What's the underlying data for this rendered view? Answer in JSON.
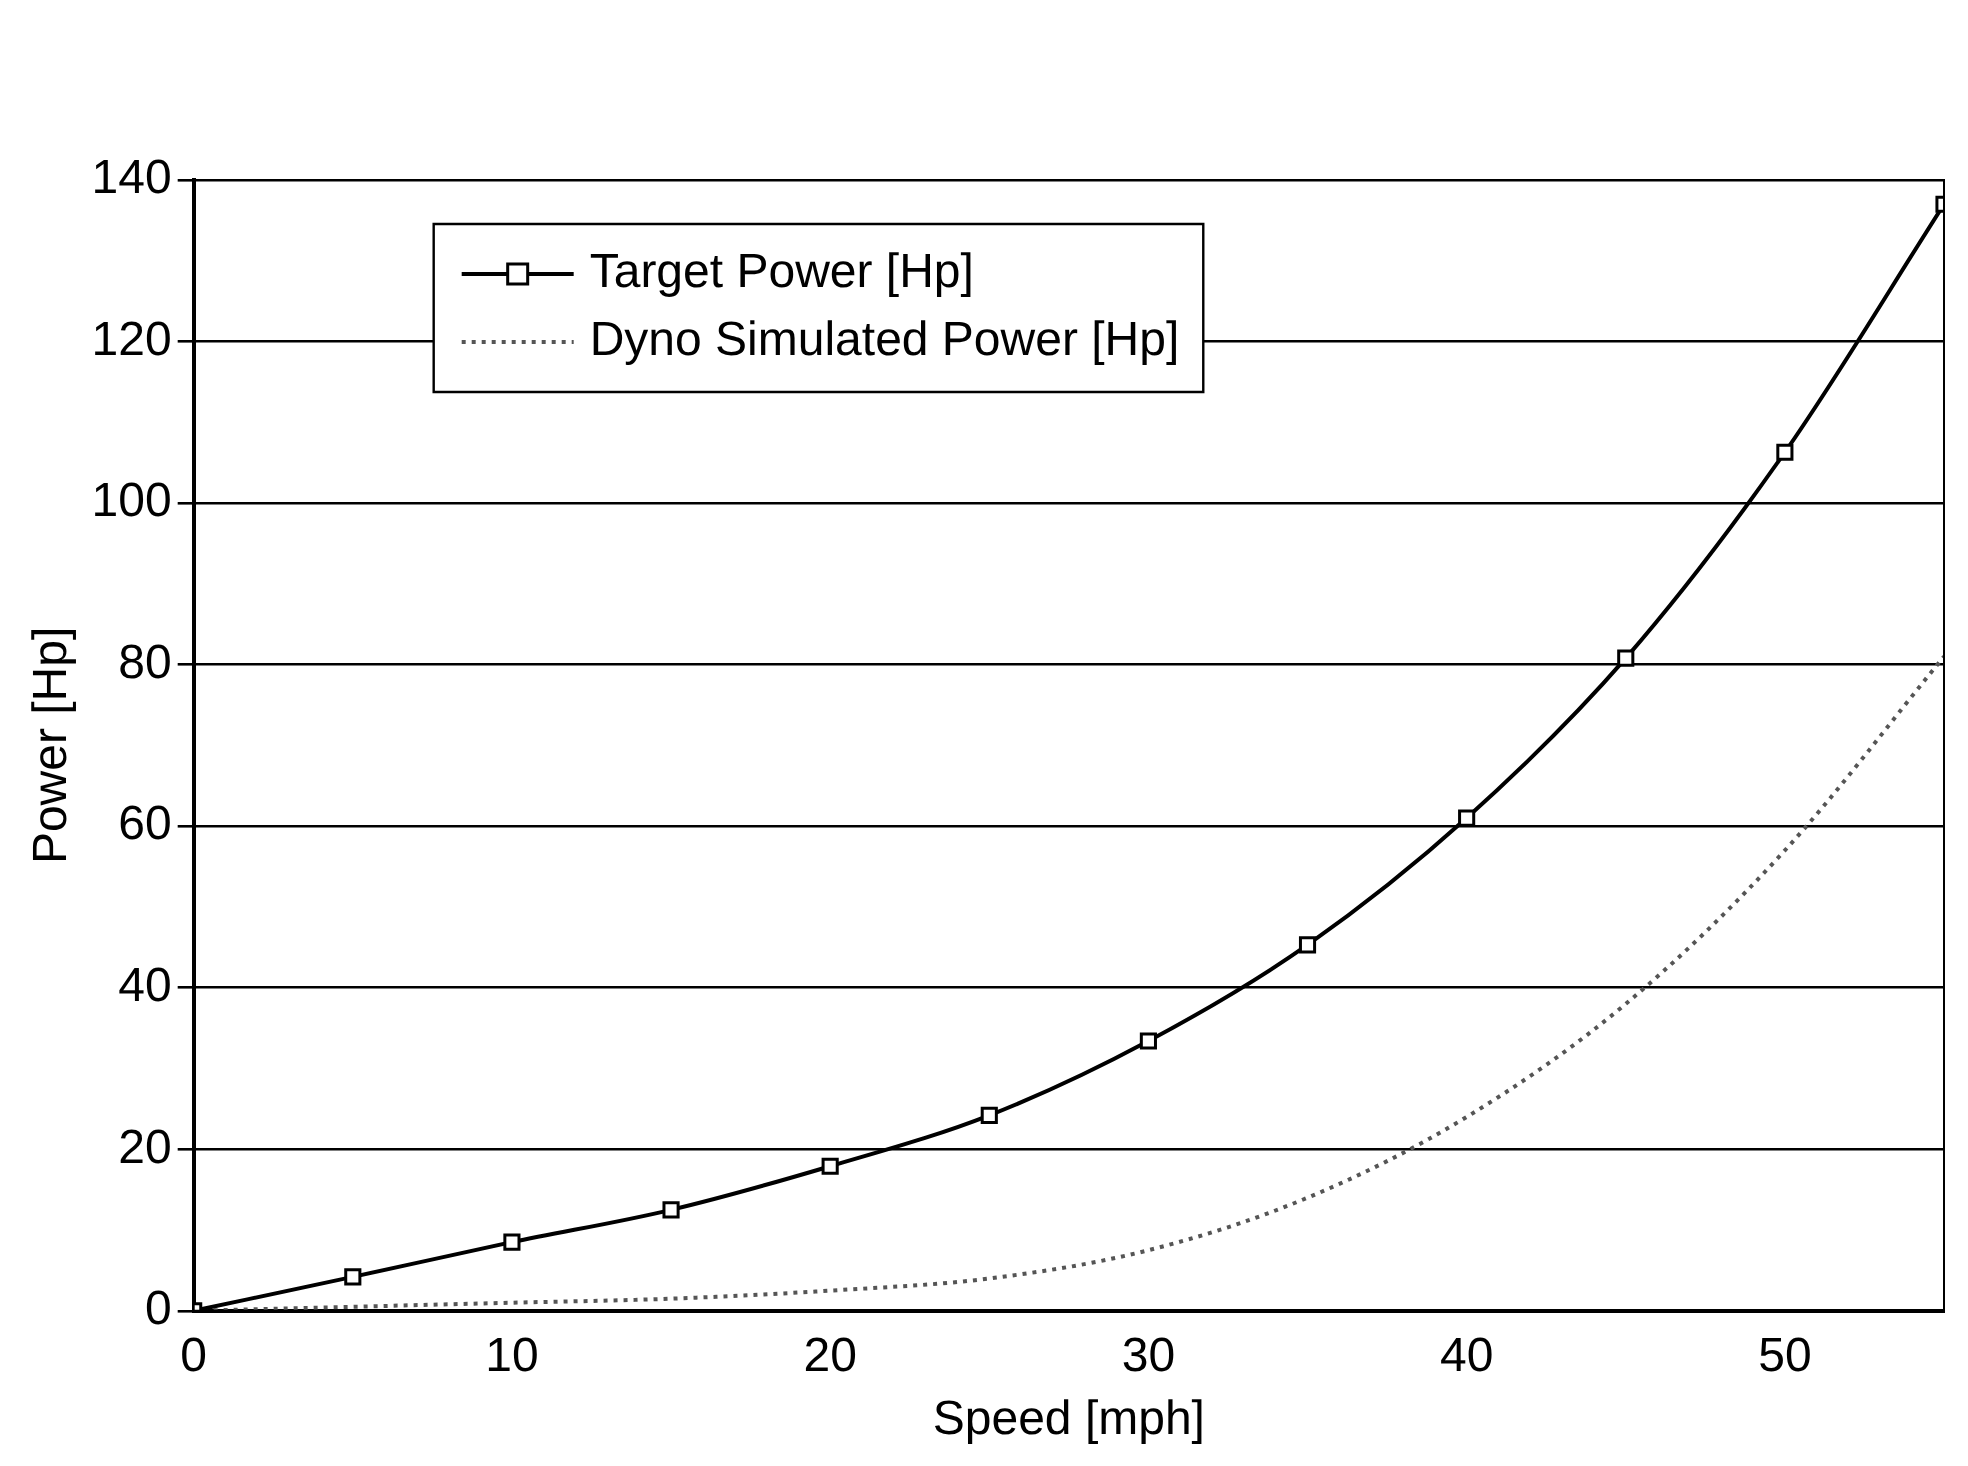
{
  "chart_data": {
    "type": "line",
    "xlabel": "Speed [mph]",
    "ylabel": "Power [Hp]",
    "xlim": [
      0,
      55
    ],
    "xticks": [
      0,
      10,
      20,
      30,
      40,
      50
    ],
    "ylim": [
      0,
      140
    ],
    "yticks": [
      0,
      20,
      40,
      60,
      80,
      100,
      120,
      140
    ],
    "grid": "y",
    "legend": "top left",
    "series": [
      {
        "name": "Target Power [Hp]",
        "color": "#000000",
        "marker": "square",
        "line_style": "solid",
        "x": [
          0,
          5,
          10,
          15,
          20,
          25,
          30,
          35,
          40,
          45,
          50,
          55
        ],
        "values": [
          0,
          4.2,
          8.5,
          12.5,
          17.9,
          24.2,
          33.4,
          45.3,
          61,
          80.8,
          106.3,
          137
        ]
      },
      {
        "name": "Dyno Simulated Power [Hp]",
        "color": "#555555",
        "marker": "none",
        "line_style": "dotted",
        "x": [
          0,
          5,
          10,
          15,
          20,
          25,
          30,
          35,
          40,
          45,
          50,
          55
        ],
        "values": [
          0,
          0.5,
          1,
          1.5,
          2.5,
          4,
          7.5,
          14,
          24,
          38,
          57,
          81
        ]
      }
    ]
  }
}
